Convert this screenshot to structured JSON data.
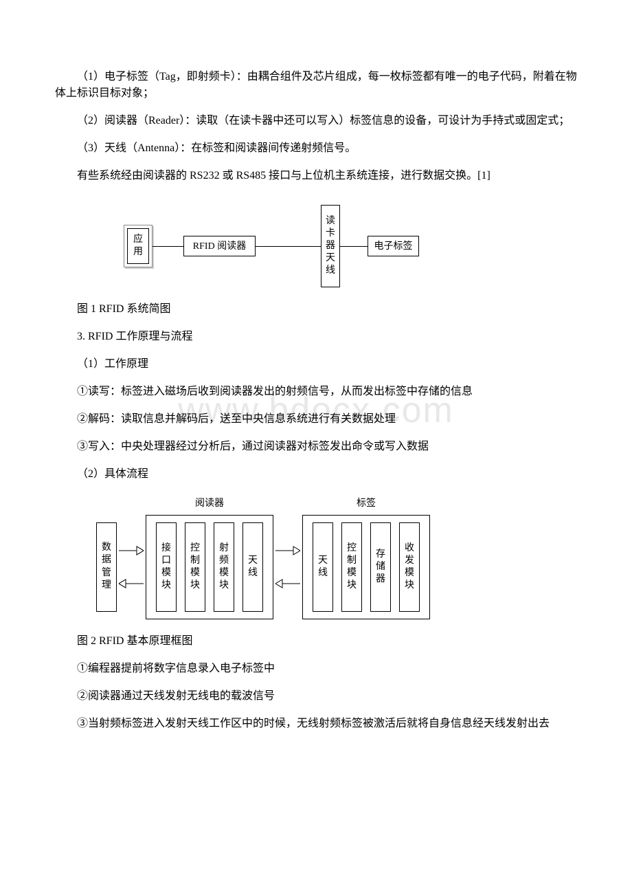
{
  "paragraphs": {
    "p1": "（1）电子标签（Tag，即射频卡）：由耦合组件及芯片组成，每一枚标签都有唯一的电子代码，附着在物体上标识目标对象；",
    "p2": "（2）阅读器（Reader）：读取（在读卡器中还可以写入）标签信息的设备，可设计为手持式或固定式；",
    "p3": "（3）天线（Antenna）：在标签和阅读器间传递射频信号。",
    "p4": "有些系统经由阅读器的 RS232 或 RS485 接口与上位机主系统连接，进行数据交换。[1]",
    "fig1_caption": "图 1 RFID 系统简图",
    "section3": "3. RFID 工作原理与流程",
    "s3_1": "（1）工作原理",
    "s3_1_1": "①读写：标签进入磁场后收到阅读器发出的射频信号，从而发出标签中存储的信息",
    "s3_1_2": "②解码：读取信息并解码后，送至中央信息系统进行有关数据处理",
    "s3_1_3": "③写入：中央处理器经过分析后，通过阅读器对标签发出命令或写入数据",
    "s3_2": "（2）具体流程",
    "fig2_caption": "图 2 RFID 基本原理框图",
    "s3_2_1": "①编程器提前将数字信息录入电子标签中",
    "s3_2_2": "②阅读器通过天线发射无线电的载波信号",
    "s3_2_3": "③当射频标签进入发射天线工作区中的时候，无线射频标签被激活后就将自身信息经天线发射出去"
  },
  "watermark": "www.bdocx.com",
  "fig1": {
    "nodes": {
      "app": "应用",
      "reader": "RFID 阅读器",
      "antenna": "读卡器天线",
      "tag": "电子标签"
    },
    "_style": {
      "border_color": "#000000",
      "background_color": "#ffffff",
      "font_size": 14
    }
  },
  "fig2": {
    "standalone": "数据管理",
    "group1": {
      "title": "阅读器",
      "boxes": [
        "接口模块",
        "控制模块",
        "射频模块",
        "天线"
      ]
    },
    "group2": {
      "title": "标签",
      "boxes": [
        "天线",
        "控制模块",
        "存储器",
        "收发模块"
      ]
    },
    "_style": {
      "border_color": "#000000",
      "background_color": "#ffffff",
      "font_size": 14,
      "arrow_color": "#000000"
    }
  }
}
